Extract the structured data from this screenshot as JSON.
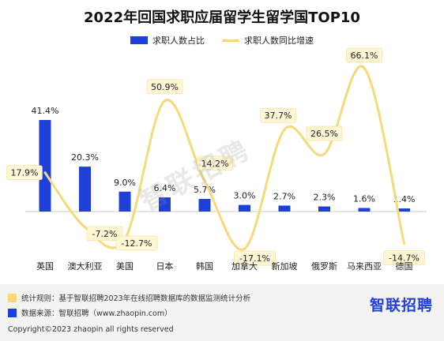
{
  "chart_data": {
    "type": "bar",
    "title": "2022年回国求职应届留学生留学国TOP10",
    "categories": [
      "英国",
      "澳大利亚",
      "美国",
      "日本",
      "韩国",
      "加拿大",
      "新加坡",
      "俄罗斯",
      "马来西亚",
      "德国"
    ],
    "series": [
      {
        "name": "求职人数占比",
        "type": "bar",
        "values": [
          41.4,
          20.3,
          9.0,
          6.4,
          5.7,
          3.0,
          2.7,
          2.3,
          1.6,
          1.4
        ],
        "labels": [
          "41.4%",
          "20.3%",
          "9.0%",
          "6.4%",
          "5.7%",
          "3.0%",
          "2.7%",
          "2.3%",
          "1.6%",
          "1.4%"
        ],
        "color": "#1e3fd8"
      },
      {
        "name": "求职人数同比增速",
        "type": "line",
        "smooth": true,
        "values": [
          17.9,
          -7.2,
          -12.7,
          50.9,
          14.2,
          -17.1,
          37.7,
          26.5,
          66.1,
          -14.7
        ],
        "labels": [
          "17.9%",
          "-7.2%",
          "-12.7%",
          "50.9%",
          "14.2%",
          "-17.1%",
          "37.7%",
          "26.5%",
          "66.1%",
          "-14.7%"
        ],
        "color": "#f5d97a"
      }
    ],
    "legend_position": "top",
    "grid": false
  },
  "footer": {
    "rule_note": "统计规则：基于智联招聘2023年在线招聘数据库的数据监测统计分析",
    "source_note": "数据来源：智联招聘（www.zhaopin.com）",
    "copyright": "Copyright©2023 zhaopin all rights reserved",
    "rule_color": "#f5d97a",
    "source_color": "#1e3fd8"
  },
  "logo": {
    "text": "智联招聘"
  },
  "watermark": {
    "text": "智联招聘"
  }
}
